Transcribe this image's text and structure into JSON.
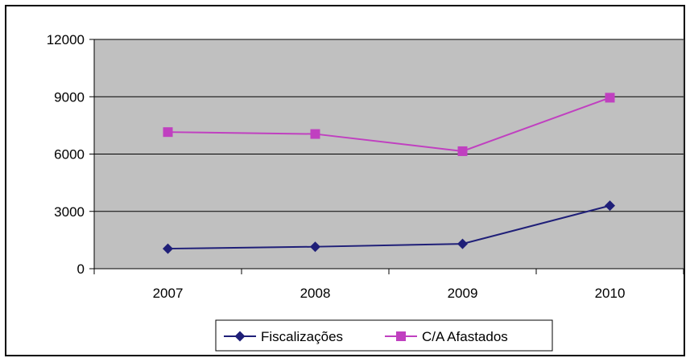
{
  "chart_data": {
    "type": "line",
    "categories": [
      "2007",
      "2008",
      "2009",
      "2010"
    ],
    "series": [
      {
        "name": "Fiscalizações",
        "values": [
          1050,
          1150,
          1300,
          3300
        ],
        "color": "#1f1f78",
        "marker": "diamond"
      },
      {
        "name": "C/A Afastados",
        "values": [
          7150,
          7050,
          6150,
          8950
        ],
        "color": "#c040c0",
        "marker": "square"
      }
    ],
    "ylim": [
      0,
      12000
    ],
    "yticks": [
      "0",
      "3000",
      "6000",
      "9000",
      "12000"
    ],
    "grid": true,
    "legend": "bottom",
    "plot_background": "#c0c0c0"
  }
}
